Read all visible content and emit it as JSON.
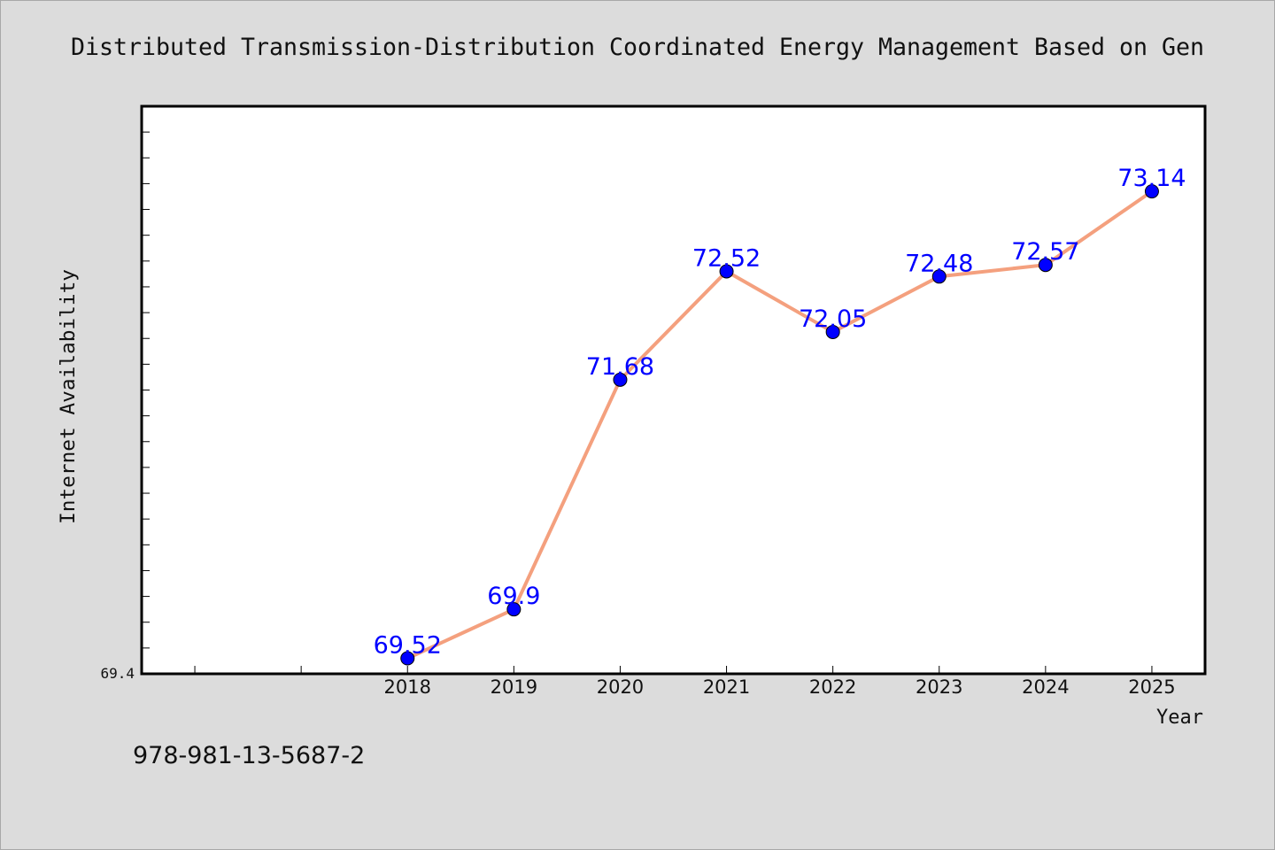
{
  "chart_data": {
    "type": "line",
    "title": "Distributed Transmission-Distribution Coordinated Energy Management Based on Gen",
    "xlabel": "Year",
    "ylabel": "Internet Availability",
    "x": [
      "2018",
      "2019",
      "2020",
      "2021",
      "2022",
      "2023",
      "2024",
      "2025"
    ],
    "series": [
      {
        "values": [
          69.52,
          69.9,
          71.68,
          72.52,
          72.05,
          72.48,
          72.57,
          73.14
        ],
        "labels": [
          "69.52",
          "69.9",
          "71.68",
          "72.52",
          "72.05",
          "72.48",
          "72.57",
          "73.14"
        ]
      }
    ],
    "xlim": [
      2015.5,
      2025.5
    ],
    "ylim": [
      69.4,
      73.8
    ],
    "y_ticks_labeled": [
      "69.4"
    ],
    "grid": false,
    "legend": "none",
    "line_color": "#f4a07e",
    "marker_color": "#0000ff",
    "label_color": "#0000ff",
    "plot_background": "#ffffff",
    "figure_background": "#dcdcdc"
  },
  "footer": {
    "isbn": "978-981-13-5687-2"
  }
}
